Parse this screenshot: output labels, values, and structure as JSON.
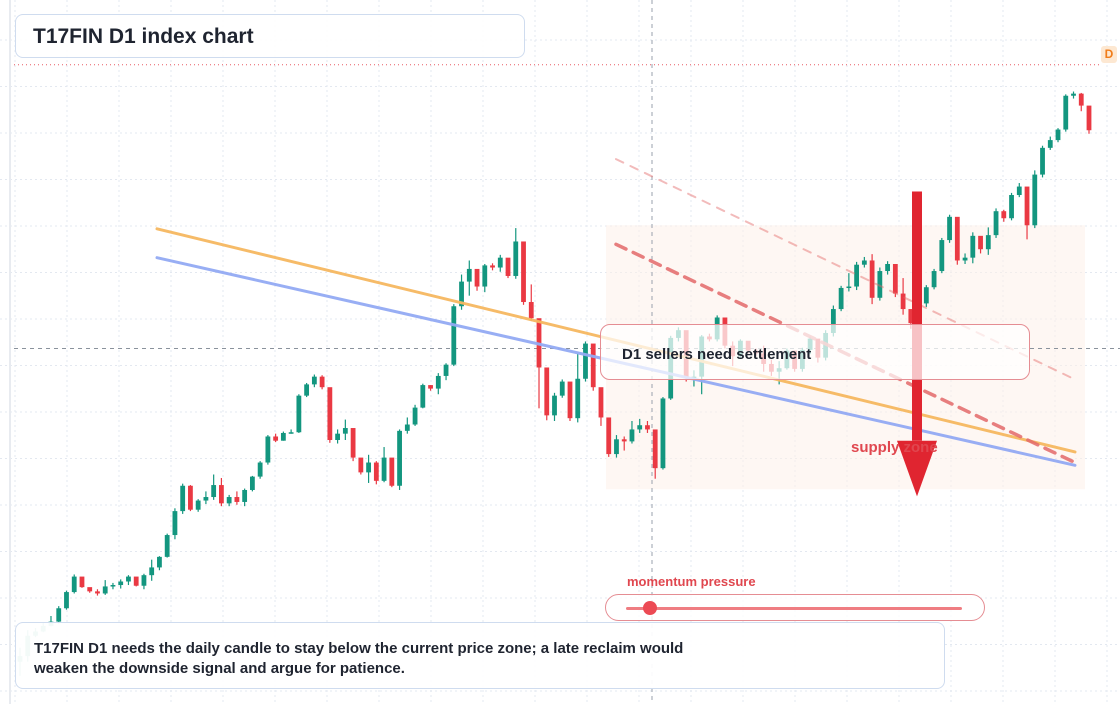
{
  "title": "T17FIN D1 index chart",
  "timeframe_badge": "D",
  "setup_label": "D1 sellers need settlement",
  "zone_label": "supply zone",
  "momentum": {
    "label": "momentum pressure",
    "level": 0.07
  },
  "note": {
    "line1": "T17FIN D1 needs the daily candle to stay below the current price zone; a late reclaim would",
    "line2": "weaken the downside signal and argue for patience."
  },
  "colors": {
    "up": "#13967f",
    "down": "#ea3943",
    "resistance_line": "#f6b860",
    "support_line": "#93aaf4",
    "bearish_line": "#e46a6a",
    "arrow": "#e02530",
    "zone_fill": "#fdf1ea",
    "grid": "#e3e8f0"
  },
  "chart_data": {
    "type": "candlestick",
    "title": "T17FIN D1 index chart",
    "xlabel": "",
    "ylabel": "",
    "ylim": [
      0,
      100
    ],
    "grid": true,
    "candles_ohlc": [
      [
        6.0,
        8.0,
        4.0,
        6.8
      ],
      [
        6.8,
        10.5,
        6.0,
        9.7
      ],
      [
        9.7,
        10.8,
        9.5,
        10.3
      ],
      [
        10.3,
        11.5,
        10.2,
        11.1
      ],
      [
        11.1,
        12.5,
        11.0,
        11.7
      ],
      [
        11.7,
        13.9,
        11.4,
        13.6
      ],
      [
        13.6,
        16.1,
        13.4,
        15.9
      ],
      [
        15.9,
        18.4,
        15.7,
        18.1
      ],
      [
        18.1,
        17.8,
        16.5,
        16.6
      ],
      [
        16.6,
        16.2,
        15.8,
        16.0
      ],
      [
        16.0,
        16.3,
        15.4,
        15.7
      ],
      [
        15.7,
        17.6,
        15.5,
        16.7
      ],
      [
        16.7,
        17.2,
        16.3,
        16.9
      ],
      [
        16.9,
        17.7,
        16.4,
        17.4
      ],
      [
        17.4,
        18.3,
        16.9,
        18.1
      ],
      [
        18.1,
        18.0,
        16.7,
        16.8
      ],
      [
        16.8,
        18.5,
        16.3,
        18.3
      ],
      [
        18.3,
        20.5,
        17.5,
        19.4
      ],
      [
        19.4,
        21.0,
        19.0,
        20.9
      ],
      [
        20.9,
        24.2,
        20.8,
        24.0
      ],
      [
        24.0,
        27.8,
        23.4,
        27.4
      ],
      [
        27.4,
        31.3,
        27.0,
        31.0
      ],
      [
        31.0,
        31.1,
        27.4,
        27.6
      ],
      [
        27.6,
        29.1,
        27.3,
        28.9
      ],
      [
        28.9,
        30.2,
        28.4,
        29.4
      ],
      [
        29.4,
        32.6,
        29.0,
        31.1
      ],
      [
        31.1,
        32.1,
        28.1,
        28.5
      ],
      [
        28.5,
        29.7,
        28.1,
        29.4
      ],
      [
        29.4,
        30.2,
        28.3,
        28.7
      ],
      [
        28.7,
        30.6,
        28.1,
        30.4
      ],
      [
        30.4,
        32.4,
        30.2,
        32.3
      ],
      [
        32.3,
        34.5,
        32.0,
        34.3
      ],
      [
        34.3,
        38.2,
        34.0,
        38.0
      ],
      [
        38.0,
        38.4,
        37.2,
        37.4
      ],
      [
        37.4,
        38.7,
        37.4,
        38.5
      ],
      [
        38.5,
        39.0,
        38.4,
        38.6
      ],
      [
        38.6,
        44.0,
        38.5,
        43.8
      ],
      [
        43.8,
        45.6,
        43.6,
        45.4
      ],
      [
        45.4,
        46.8,
        45.0,
        46.5
      ],
      [
        46.5,
        46.7,
        44.7,
        45.0
      ],
      [
        45.0,
        41.3,
        37.1,
        37.5
      ],
      [
        37.5,
        39.0,
        37.0,
        38.4
      ],
      [
        38.4,
        40.4,
        37.5,
        39.2
      ],
      [
        39.2,
        38.9,
        34.5,
        35.0
      ],
      [
        35.0,
        34.7,
        32.6,
        32.9
      ],
      [
        32.9,
        35.4,
        31.4,
        34.3
      ],
      [
        34.3,
        34.5,
        31.2,
        31.7
      ],
      [
        31.7,
        36.5,
        31.5,
        35.0
      ],
      [
        35.0,
        34.8,
        30.8,
        31.0
      ],
      [
        31.0,
        39.0,
        30.4,
        38.8
      ],
      [
        38.8,
        40.7,
        38.4,
        39.7
      ],
      [
        39.7,
        42.5,
        39.5,
        42.1
      ],
      [
        42.1,
        45.5,
        42.0,
        45.3
      ],
      [
        45.3,
        45.3,
        44.5,
        44.8
      ],
      [
        44.8,
        47.0,
        44.0,
        46.6
      ],
      [
        46.6,
        48.4,
        46.0,
        48.2
      ],
      [
        48.2,
        56.8,
        48.0,
        56.5
      ],
      [
        56.5,
        61.0,
        56.0,
        60.0
      ],
      [
        60.0,
        63.0,
        58.0,
        61.8
      ],
      [
        61.8,
        61.2,
        58.7,
        59.3
      ],
      [
        59.3,
        62.5,
        58.5,
        62.3
      ],
      [
        62.3,
        62.6,
        61.6,
        62.0
      ],
      [
        62.0,
        63.8,
        61.4,
        63.4
      ],
      [
        63.4,
        63.2,
        60.5,
        60.8
      ],
      [
        60.8,
        67.6,
        60.4,
        65.7
      ],
      [
        65.7,
        64.5,
        56.7,
        57.1
      ],
      [
        57.1,
        59.6,
        54.4,
        54.8
      ],
      [
        54.8,
        51.6,
        42.0,
        47.8
      ],
      [
        47.8,
        46.2,
        40.3,
        41.0
      ],
      [
        41.0,
        44.2,
        40.2,
        43.8
      ],
      [
        43.8,
        46.1,
        43.5,
        45.8
      ],
      [
        45.8,
        43.5,
        40.2,
        40.6
      ],
      [
        40.6,
        49.8,
        40.0,
        46.2
      ],
      [
        46.2,
        51.5,
        45.8,
        51.2
      ],
      [
        51.2,
        50.5,
        44.5,
        45.0
      ],
      [
        45.0,
        41.2,
        39.5,
        40.7
      ],
      [
        40.7,
        39.2,
        35.1,
        35.5
      ],
      [
        35.5,
        38.2,
        35.0,
        37.6
      ],
      [
        37.6,
        38.0,
        36.0,
        37.3
      ],
      [
        37.3,
        40.2,
        37.0,
        39.0
      ],
      [
        39.0,
        40.5,
        38.5,
        39.6
      ],
      [
        39.6,
        40.2,
        38.5,
        39.0
      ],
      [
        39.0,
        33.9,
        32.0,
        33.5
      ],
      [
        33.5,
        43.6,
        33.3,
        43.4
      ],
      [
        43.4,
        52.3,
        43.2,
        52.0
      ],
      [
        52.0,
        53.5,
        51.5,
        53.1
      ],
      [
        53.1,
        52.6,
        45.8,
        46.3
      ],
      [
        46.3,
        47.4,
        45.1,
        46.5
      ],
      [
        46.5,
        52.4,
        44.0,
        52.2
      ],
      [
        52.2,
        52.6,
        51.5,
        51.8
      ],
      [
        51.8,
        55.2,
        51.5,
        54.9
      ],
      [
        54.9,
        53.2,
        50.5,
        50.9
      ],
      [
        50.9,
        51.5,
        48.0,
        49.4
      ],
      [
        49.4,
        51.8,
        49.2,
        51.6
      ],
      [
        51.6,
        50.4,
        49.8,
        50.2
      ],
      [
        50.2,
        50.5,
        49.4,
        49.8
      ],
      [
        49.8,
        50.9,
        47.2,
        48.3
      ],
      [
        48.3,
        48.9,
        46.6,
        47.2
      ],
      [
        47.2,
        48.7,
        45.4,
        47.7
      ],
      [
        47.7,
        50.5,
        47.5,
        50.2
      ],
      [
        50.2,
        50.0,
        47.2,
        47.6
      ],
      [
        47.6,
        50.6,
        47.2,
        50.3
      ],
      [
        50.3,
        52.2,
        49.7,
        51.9
      ],
      [
        51.9,
        51.5,
        48.5,
        49.2
      ],
      [
        49.2,
        53.1,
        48.8,
        52.7
      ],
      [
        52.7,
        56.6,
        52.2,
        56.1
      ],
      [
        56.1,
        59.4,
        55.8,
        59.1
      ],
      [
        59.1,
        61.2,
        58.6,
        59.3
      ],
      [
        59.3,
        62.8,
        58.8,
        62.4
      ],
      [
        62.4,
        63.5,
        62.0,
        63.0
      ],
      [
        63.0,
        63.9,
        56.8,
        57.7
      ],
      [
        57.7,
        62.0,
        57.3,
        61.5
      ],
      [
        61.5,
        62.9,
        61.0,
        62.5
      ],
      [
        62.5,
        61.5,
        57.8,
        58.3
      ],
      [
        58.3,
        60.5,
        55.3,
        56.1
      ],
      [
        56.1,
        55.8,
        53.3,
        54.1
      ],
      [
        54.1,
        57.3,
        53.8,
        56.9
      ],
      [
        56.9,
        59.5,
        56.4,
        59.2
      ],
      [
        59.2,
        61.8,
        58.9,
        61.5
      ],
      [
        61.5,
        66.2,
        61.2,
        65.9
      ],
      [
        65.9,
        69.5,
        65.5,
        69.2
      ],
      [
        69.2,
        67.2,
        62.4,
        63.0
      ],
      [
        63.0,
        64.0,
        62.5,
        63.4
      ],
      [
        63.4,
        67.0,
        62.6,
        66.5
      ],
      [
        66.5,
        65.5,
        64.0,
        64.6
      ],
      [
        64.6,
        67.7,
        63.8,
        66.6
      ],
      [
        66.6,
        70.4,
        66.2,
        70.0
      ],
      [
        70.0,
        70.2,
        68.5,
        69.0
      ],
      [
        69.0,
        72.6,
        68.7,
        72.3
      ],
      [
        72.3,
        74.0,
        72.0,
        73.5
      ],
      [
        73.5,
        68.8,
        66.0,
        68.0
      ],
      [
        68.0,
        75.8,
        67.6,
        75.2
      ],
      [
        75.2,
        79.3,
        74.8,
        79.0
      ],
      [
        79.0,
        80.6,
        78.7,
        80.1
      ],
      [
        80.1,
        81.8,
        79.8,
        81.6
      ],
      [
        81.6,
        86.6,
        81.3,
        86.4
      ],
      [
        86.4,
        87.0,
        86.0,
        86.7
      ],
      [
        86.7,
        86.8,
        84.2,
        85.0
      ],
      [
        85.0,
        82.7,
        81.0,
        81.5
      ]
    ],
    "overlays": {
      "resistance_line": [
        [
          0.0,
          67.5
        ],
        [
          1.0,
          35.8
        ]
      ],
      "support_line": [
        [
          0.0,
          63.4
        ],
        [
          1.0,
          33.9
        ]
      ],
      "bearish_dashed": [
        [
          0.5,
          65.3
        ],
        [
          1.0,
          34.3
        ]
      ],
      "bearish_dashed_faint": [
        [
          0.5,
          77.4
        ],
        [
          1.0,
          46.1
        ]
      ]
    },
    "supply_zone": {
      "x_start": 0.5,
      "x_end": 1.0,
      "y_low": 30.5,
      "y_high": 68.0
    },
    "price_level": 50.5,
    "target_level": 30.5
  }
}
